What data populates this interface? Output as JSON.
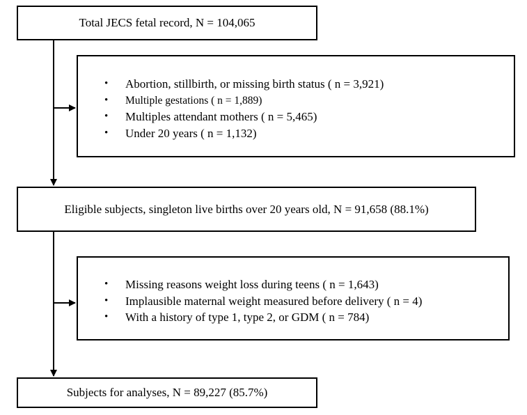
{
  "flow": {
    "total": {
      "text": "Total JECS fetal record, N = 104,065"
    },
    "exclusion1": {
      "items": [
        {
          "text": "Abortion, stillbirth, or missing birth status ( n = 3,921)"
        },
        {
          "text": "Multiple gestations ( n = 1,889)"
        },
        {
          "text": "Multiples attendant mothers ( n = 5,465)"
        },
        {
          "text": "Under 20 years ( n = 1,132)"
        }
      ]
    },
    "eligible": {
      "text": "Eligible subjects, singleton live births over 20 years old, N = 91,658 (88.1%)"
    },
    "exclusion2": {
      "items": [
        {
          "text": "Missing reasons weight loss during teens ( n = 1,643)"
        },
        {
          "text": "Implausible maternal weight measured before delivery ( n = 4)"
        },
        {
          "text": "With a history of type 1, type 2, or GDM ( n = 784)"
        }
      ]
    },
    "final": {
      "text": "Subjects for analyses, N = 89,227 (85.7%)"
    }
  },
  "bullet_symbol": "•"
}
